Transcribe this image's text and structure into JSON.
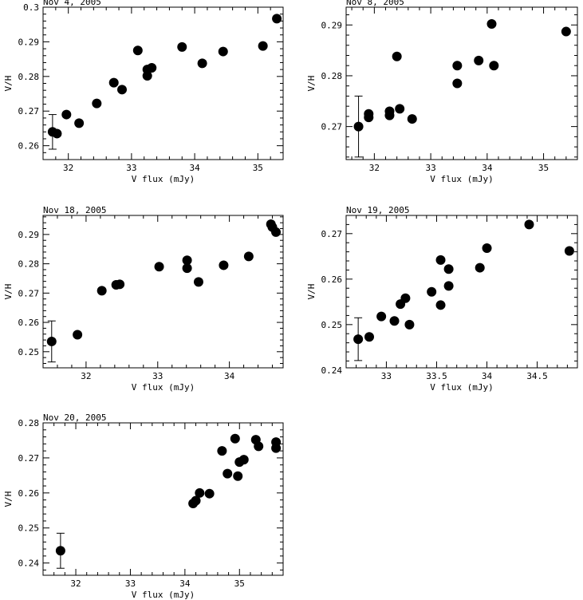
{
  "chart_data": [
    {
      "type": "scatter",
      "title": "Nov 4, 2005",
      "xlabel": "V flux (mJy)",
      "ylabel": "V/H",
      "xlim": [
        31.6,
        35.4
      ],
      "ylim": [
        0.256,
        0.3
      ],
      "xticks": [
        32,
        33,
        34,
        35
      ],
      "yticks": [
        0.26,
        0.27,
        0.28,
        0.29,
        0.3
      ],
      "ytick_labels": [
        "0.26",
        "0.27",
        "0.28",
        "0.29",
        "0.3"
      ],
      "errorbar": {
        "x": 31.75,
        "y": 0.264,
        "yerr": 0.005
      },
      "points": [
        {
          "x": 31.75,
          "y": 0.264
        },
        {
          "x": 31.82,
          "y": 0.2635
        },
        {
          "x": 31.97,
          "y": 0.269
        },
        {
          "x": 32.17,
          "y": 0.2665
        },
        {
          "x": 32.45,
          "y": 0.2722
        },
        {
          "x": 32.72,
          "y": 0.2782
        },
        {
          "x": 32.85,
          "y": 0.2762
        },
        {
          "x": 33.1,
          "y": 0.2875
        },
        {
          "x": 33.25,
          "y": 0.2802
        },
        {
          "x": 33.25,
          "y": 0.282
        },
        {
          "x": 33.32,
          "y": 0.2825
        },
        {
          "x": 33.8,
          "y": 0.2885
        },
        {
          "x": 34.12,
          "y": 0.2838
        },
        {
          "x": 34.45,
          "y": 0.2872
        },
        {
          "x": 35.08,
          "y": 0.2888
        },
        {
          "x": 35.3,
          "y": 0.2967
        }
      ]
    },
    {
      "type": "scatter",
      "title": "Nov 8, 2005",
      "xlabel": "V flux (mJy)",
      "ylabel": "V/H",
      "xlim": [
        31.5,
        35.6
      ],
      "ylim": [
        0.2635,
        0.2935
      ],
      "xticks": [
        32,
        33,
        34,
        35
      ],
      "yticks": [
        0.27,
        0.28,
        0.29
      ],
      "ytick_labels": [
        "0.27",
        "0.28",
        "0.29"
      ],
      "errorbar": {
        "x": 31.72,
        "y": 0.27,
        "yerr": 0.006
      },
      "points": [
        {
          "x": 31.72,
          "y": 0.27
        },
        {
          "x": 31.9,
          "y": 0.2718
        },
        {
          "x": 31.9,
          "y": 0.2725
        },
        {
          "x": 32.27,
          "y": 0.2722
        },
        {
          "x": 32.27,
          "y": 0.273
        },
        {
          "x": 32.4,
          "y": 0.2838
        },
        {
          "x": 32.45,
          "y": 0.2735
        },
        {
          "x": 32.67,
          "y": 0.2715
        },
        {
          "x": 33.47,
          "y": 0.2785
        },
        {
          "x": 33.47,
          "y": 0.282
        },
        {
          "x": 33.85,
          "y": 0.283
        },
        {
          "x": 34.08,
          "y": 0.2902
        },
        {
          "x": 34.12,
          "y": 0.282
        },
        {
          "x": 35.4,
          "y": 0.2887
        }
      ]
    },
    {
      "type": "scatter",
      "title": "Nov 18, 2005",
      "xlabel": "V flux (mJy)",
      "ylabel": "V/H",
      "xlim": [
        31.4,
        34.75
      ],
      "ylim": [
        0.2445,
        0.2965
      ],
      "xticks": [
        32,
        33,
        34
      ],
      "yticks": [
        0.25,
        0.26,
        0.27,
        0.28,
        0.29
      ],
      "ytick_labels": [
        "0.25",
        "0.26",
        "0.27",
        "0.28",
        "0.29"
      ],
      "errorbar": {
        "x": 31.52,
        "y": 0.2535,
        "yerr": 0.007
      },
      "points": [
        {
          "x": 31.52,
          "y": 0.2535
        },
        {
          "x": 31.88,
          "y": 0.2558
        },
        {
          "x": 32.22,
          "y": 0.2708
        },
        {
          "x": 32.42,
          "y": 0.2728
        },
        {
          "x": 32.47,
          "y": 0.273
        },
        {
          "x": 33.02,
          "y": 0.279
        },
        {
          "x": 33.41,
          "y": 0.2812
        },
        {
          "x": 33.41,
          "y": 0.2785
        },
        {
          "x": 33.57,
          "y": 0.2738
        },
        {
          "x": 33.92,
          "y": 0.2795
        },
        {
          "x": 34.27,
          "y": 0.2825
        },
        {
          "x": 34.58,
          "y": 0.2935
        },
        {
          "x": 34.6,
          "y": 0.2925
        },
        {
          "x": 34.65,
          "y": 0.2908
        }
      ]
    },
    {
      "type": "scatter",
      "title": "Nov 19, 2005",
      "xlabel": "V flux (mJy)",
      "ylabel": "V/H",
      "xlim": [
        32.6,
        34.9
      ],
      "ylim": [
        0.2405,
        0.274
      ],
      "xticks": [
        33,
        33.5,
        34,
        34.5
      ],
      "yticks": [
        0.24,
        0.25,
        0.26,
        0.27
      ],
      "ytick_labels": [
        "0.24",
        "0.25",
        "0.26",
        "0.27"
      ],
      "errorbar": {
        "x": 32.72,
        "y": 0.2468,
        "yerr": 0.0047
      },
      "points": [
        {
          "x": 32.72,
          "y": 0.2468
        },
        {
          "x": 32.83,
          "y": 0.2473
        },
        {
          "x": 32.95,
          "y": 0.2518
        },
        {
          "x": 33.08,
          "y": 0.2508
        },
        {
          "x": 33.14,
          "y": 0.2545
        },
        {
          "x": 33.19,
          "y": 0.2558
        },
        {
          "x": 33.23,
          "y": 0.25
        },
        {
          "x": 33.45,
          "y": 0.2572
        },
        {
          "x": 33.54,
          "y": 0.2642
        },
        {
          "x": 33.54,
          "y": 0.2543
        },
        {
          "x": 33.62,
          "y": 0.2622
        },
        {
          "x": 33.62,
          "y": 0.2585
        },
        {
          "x": 33.93,
          "y": 0.2625
        },
        {
          "x": 34.0,
          "y": 0.2668
        },
        {
          "x": 34.42,
          "y": 0.272
        },
        {
          "x": 34.82,
          "y": 0.2662
        }
      ]
    },
    {
      "type": "scatter",
      "title": "Nov 20, 2005",
      "xlabel": "V flux (mJy)",
      "ylabel": "V/H",
      "xlim": [
        31.4,
        35.8
      ],
      "ylim": [
        0.2365,
        0.28
      ],
      "xticks": [
        32,
        33,
        34,
        35
      ],
      "yticks": [
        0.24,
        0.25,
        0.26,
        0.27,
        0.28
      ],
      "ytick_labels": [
        "0.24",
        "0.25",
        "0.26",
        "0.27",
        "0.28"
      ],
      "errorbar": {
        "x": 31.72,
        "y": 0.2435,
        "yerr": 0.005
      },
      "points": [
        {
          "x": 31.72,
          "y": 0.2435
        },
        {
          "x": 34.15,
          "y": 0.257
        },
        {
          "x": 34.2,
          "y": 0.2578
        },
        {
          "x": 34.27,
          "y": 0.26
        },
        {
          "x": 34.45,
          "y": 0.2598
        },
        {
          "x": 34.68,
          "y": 0.272
        },
        {
          "x": 34.78,
          "y": 0.2655
        },
        {
          "x": 34.92,
          "y": 0.2755
        },
        {
          "x": 34.97,
          "y": 0.2648
        },
        {
          "x": 35.0,
          "y": 0.2688
        },
        {
          "x": 35.08,
          "y": 0.2695
        },
        {
          "x": 35.3,
          "y": 0.2752
        },
        {
          "x": 35.35,
          "y": 0.2733
        },
        {
          "x": 35.67,
          "y": 0.2745
        },
        {
          "x": 35.67,
          "y": 0.2728
        }
      ]
    }
  ]
}
